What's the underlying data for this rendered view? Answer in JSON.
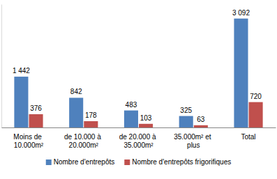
{
  "chart_data": {
    "type": "bar",
    "categories": [
      "Moins de 10.000m²",
      "de 10.000 à 20.000m²",
      "de 20.000 à 35.000m²",
      "35.000m² et plus",
      "Total"
    ],
    "series": [
      {
        "name": "Nombre d'entrepôts",
        "color": "#4f81bd",
        "values": [
          1442,
          842,
          483,
          325,
          3092
        ],
        "value_labels": [
          "1 442",
          "842",
          "483",
          "325",
          "3 092"
        ]
      },
      {
        "name": "Nombre d'entrepôts frigorifiques",
        "color": "#c0504d",
        "values": [
          376,
          178,
          103,
          63,
          720
        ]
      }
    ],
    "ylim": [
      0,
      3500
    ],
    "data_labels": true,
    "tick_labels": "x",
    "legend": "bottom"
  }
}
